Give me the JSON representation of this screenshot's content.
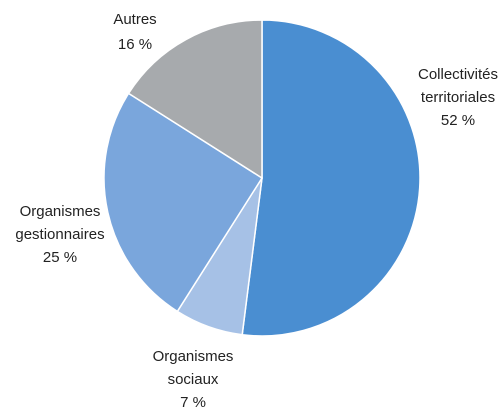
{
  "chart_data": {
    "type": "pie",
    "title": "",
    "start_angle_deg": 0,
    "direction": "clockwise",
    "slices": [
      {
        "name_lines": [
          "Collectivités",
          "territoriales"
        ],
        "value": 52,
        "value_label": "52 %",
        "color": "#4a8ed1",
        "label_pos": "right"
      },
      {
        "name_lines": [
          "Organismes",
          "sociaux"
        ],
        "value": 7,
        "value_label": "7 %",
        "color": "#a6c1e6",
        "label_pos": "bottom"
      },
      {
        "name_lines": [
          "Organismes",
          "gestionnaires"
        ],
        "value": 25,
        "value_label": "25 %",
        "color": "#7aa6dc",
        "label_pos": "left"
      },
      {
        "name_lines": [
          "Autres"
        ],
        "value": 16,
        "value_label": "16 %",
        "color": "#a7aaad",
        "label_pos": "top"
      }
    ]
  }
}
